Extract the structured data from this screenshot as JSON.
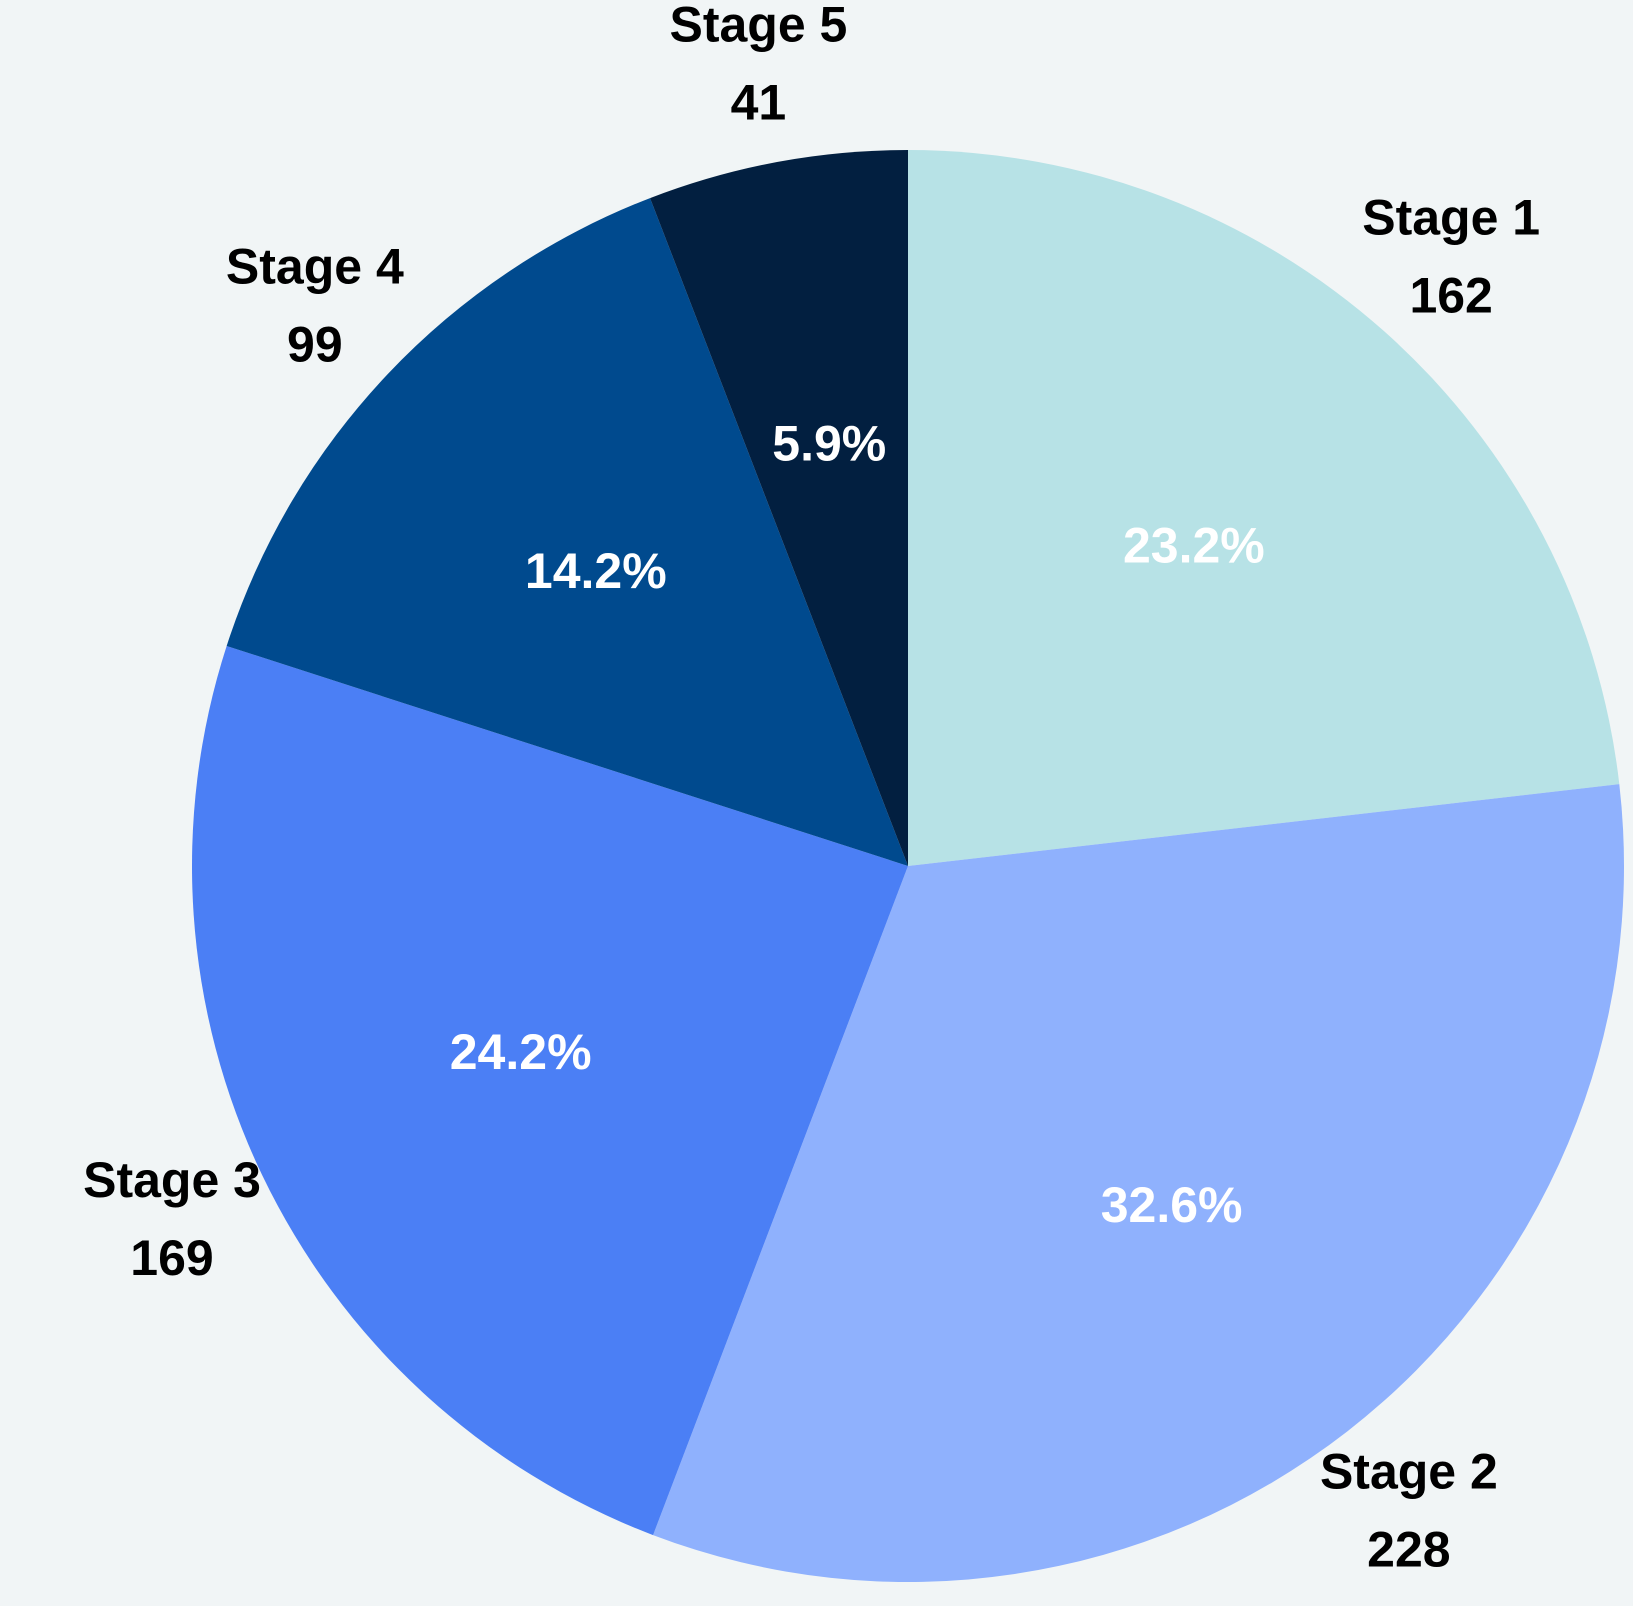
{
  "chart_data": {
    "type": "pie",
    "title": "",
    "start": "12 o'clock",
    "direction": "clockwise",
    "slices": [
      {
        "label": "Stage 1",
        "value": 162,
        "percent_label": "23.2%",
        "color": "#b7e2e6"
      },
      {
        "label": "Stage 2",
        "value": 228,
        "percent_label": "32.6%",
        "color": "#8fb1fd"
      },
      {
        "label": "Stage 3",
        "value": 169,
        "percent_label": "24.2%",
        "color": "#4b7ff5"
      },
      {
        "label": "Stage 4",
        "value": 99,
        "percent_label": "14.2%",
        "color": "#004a8e"
      },
      {
        "label": "Stage 5",
        "value": 41,
        "percent_label": "5.9%",
        "color": "#021f40"
      }
    ]
  }
}
